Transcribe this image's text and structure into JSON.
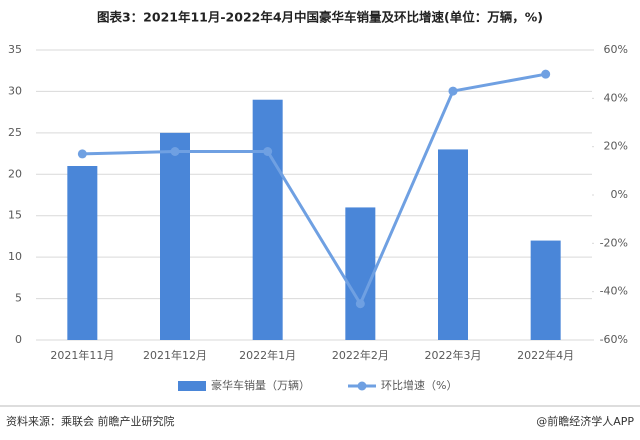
{
  "chart_data": {
    "type": "bar",
    "title": "图表3：2021年11月-2022年4月中国豪华车销量及环比增速(单位：万辆，%)",
    "categories": [
      "2021年11月",
      "2021年12月",
      "2022年1月",
      "2022年2月",
      "2022年3月",
      "2022年4月"
    ],
    "series": [
      {
        "name": "豪华车销量（万辆）",
        "type": "bar",
        "color": "#4a86d8",
        "values": [
          21,
          25,
          29,
          16,
          23,
          12
        ]
      },
      {
        "name": "环比增速（%）",
        "type": "line",
        "axis": "y2",
        "color": "#6fa0e2",
        "values": [
          17,
          18,
          18,
          -45,
          43,
          50
        ]
      }
    ],
    "ylim": [
      0,
      35
    ],
    "yticks": [
      0,
      5,
      10,
      15,
      20,
      25,
      30,
      35
    ],
    "y2lim": [
      -60,
      60
    ],
    "y2ticks": [
      {
        "value": -60,
        "label": "-60%"
      },
      {
        "value": -40,
        "label": "-40%"
      },
      {
        "value": -20,
        "label": "-20%"
      },
      {
        "value": 0,
        "label": "0%"
      },
      {
        "value": 20,
        "label": "20%"
      },
      {
        "value": 40,
        "label": "40%"
      },
      {
        "value": 60,
        "label": "60%"
      }
    ],
    "grid": true,
    "legend": "bottom",
    "source": "资料来源：乘联会 前瞻产业研究院",
    "credit": "@前瞻经济学人APP"
  }
}
